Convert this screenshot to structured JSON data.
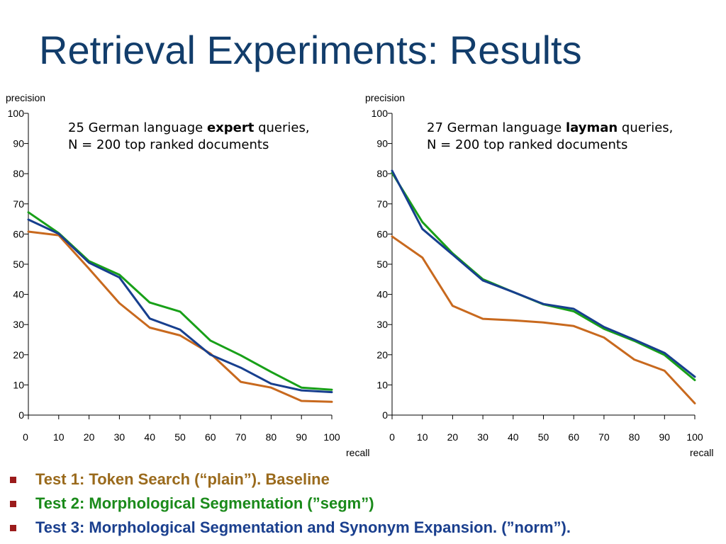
{
  "slide": {
    "title": "Retrieval Experiments:  Results"
  },
  "colors": {
    "plain": "#c8691e",
    "segm": "#18a018",
    "norm": "#173f8e",
    "title": "#123d6b",
    "bullet": "#9b1b1b",
    "legend_plain": "#9a6a1c",
    "legend_segm": "#1a8a1a",
    "legend_norm": "#1a3f8e"
  },
  "legend": {
    "items": [
      {
        "label": "Test 1: Token Search (“plain”). Baseline",
        "color": "#9a6a1c"
      },
      {
        "label": "Test 2: Morphological Segmentation (”segm”)",
        "color": "#1a8a1a"
      },
      {
        "label": "Test 3: Morphological Segmentation and Synonym Expansion. (”norm”).",
        "color": "#1a3f8e"
      }
    ]
  },
  "chart_data": [
    {
      "type": "line",
      "ylabel": "precision",
      "xlabel": "recall",
      "annotation_line1_pre": "25 German language ",
      "annotation_line1_bold": "expert",
      "annotation_line1_post": " queries,",
      "annotation_line2": "N = 200 top ranked documents",
      "x": [
        0,
        10,
        20,
        30,
        40,
        50,
        60,
        70,
        80,
        90,
        100
      ],
      "xlim": [
        0,
        100
      ],
      "ylim": [
        0,
        100
      ],
      "xticks": [
        "0",
        "10",
        "20",
        "30",
        "40",
        "50",
        "60",
        "70",
        "80",
        "90",
        "100"
      ],
      "yticks": [
        "0",
        "10",
        "20",
        "30",
        "40",
        "50",
        "60",
        "70",
        "80",
        "90",
        "100"
      ],
      "grid": false,
      "series": [
        {
          "key": "plain",
          "values": [
            60.8,
            59.6,
            48.5,
            37.1,
            29.0,
            26.4,
            20.4,
            11.0,
            9.1,
            4.7,
            4.4
          ]
        },
        {
          "key": "segm",
          "values": [
            67.2,
            60.3,
            51.0,
            46.5,
            37.3,
            34.3,
            24.7,
            19.8,
            14.3,
            9.1,
            8.4
          ]
        },
        {
          "key": "norm",
          "values": [
            64.8,
            60.1,
            50.5,
            45.6,
            32.0,
            28.3,
            20.0,
            15.7,
            10.4,
            8.2,
            7.6
          ]
        }
      ]
    },
    {
      "type": "line",
      "ylabel": "precision",
      "xlabel": "recall",
      "annotation_line1_pre": "27 German language ",
      "annotation_line1_bold": "layman",
      "annotation_line1_post": " queries,",
      "annotation_line2": "N = 200 top ranked documents",
      "x": [
        0,
        10,
        20,
        30,
        40,
        50,
        60,
        70,
        80,
        90,
        100
      ],
      "xlim": [
        0,
        100
      ],
      "ylim": [
        0,
        100
      ],
      "xticks": [
        "0",
        "10",
        "20",
        "30",
        "40",
        "50",
        "60",
        "70",
        "80",
        "90",
        "100"
      ],
      "yticks": [
        "0",
        "10",
        "20",
        "30",
        "40",
        "50",
        "60",
        "70",
        "80",
        "90",
        "100"
      ],
      "grid": false,
      "series": [
        {
          "key": "plain",
          "values": [
            59.2,
            52.2,
            36.2,
            31.9,
            31.4,
            30.7,
            29.5,
            25.7,
            18.4,
            14.7,
            3.9
          ]
        },
        {
          "key": "segm",
          "values": [
            80.3,
            64.0,
            53.6,
            45.0,
            40.8,
            36.7,
            34.4,
            28.6,
            24.6,
            19.9,
            11.6
          ]
        },
        {
          "key": "norm",
          "values": [
            81.0,
            61.7,
            53.2,
            44.6,
            40.8,
            36.8,
            35.2,
            29.2,
            25.0,
            20.6,
            12.7
          ]
        }
      ]
    }
  ]
}
